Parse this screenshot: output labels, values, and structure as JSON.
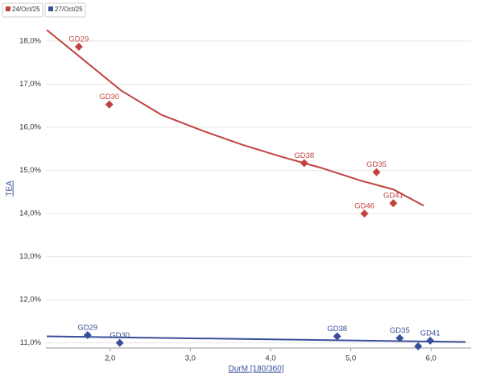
{
  "chart_data": {
    "type": "scatter",
    "xlabel": "DurM [180/360]",
    "ylabel": "TEA",
    "xlim": [
      1.2,
      6.5
    ],
    "ylim": [
      10.88,
      18.3
    ],
    "xticks": [
      {
        "value": 2,
        "label": "2,0"
      },
      {
        "value": 3,
        "label": "3,0"
      },
      {
        "value": 4,
        "label": "4,0"
      },
      {
        "value": 5,
        "label": "5,0"
      },
      {
        "value": 6,
        "label": "6,0"
      }
    ],
    "yticks": [
      {
        "value": 11,
        "label": "11,0%"
      },
      {
        "value": 12,
        "label": "12,0%"
      },
      {
        "value": 13,
        "label": "13,0%"
      },
      {
        "value": 14,
        "label": "14,0%"
      },
      {
        "value": 15,
        "label": "15,0%"
      },
      {
        "value": 16,
        "label": "16,0%"
      },
      {
        "value": 17,
        "label": "17,0%"
      },
      {
        "value": 18,
        "label": "18,0%"
      }
    ],
    "grid": true,
    "series": [
      {
        "name": "24/Oct/25",
        "color": "#c0433f",
        "x": [
          1.61,
          1.99,
          4.42,
          5.32,
          5.53,
          5.17
        ],
        "values": [
          17.87,
          16.53,
          15.17,
          14.96,
          14.24,
          14.0
        ],
        "labels": [
          "GD29",
          "GD30",
          "GD38",
          "GD35",
          "GD41",
          "GD46"
        ],
        "trend": {
          "x": [
            1.21,
            1.64,
            2.14,
            2.64,
            3.14,
            3.64,
            4.13,
            4.63,
            5.13,
            5.53,
            5.91
          ],
          "values": [
            18.26,
            17.61,
            16.85,
            16.29,
            15.93,
            15.6,
            15.32,
            15.06,
            14.76,
            14.56,
            14.18
          ]
        }
      },
      {
        "name": "27/Oct/25",
        "color": "#3a4f9a",
        "x": [
          1.72,
          2.12,
          4.83,
          5.61,
          5.84,
          5.99
        ],
        "values": [
          11.18,
          11.0,
          11.15,
          11.11,
          10.92,
          11.05
        ],
        "labels": [
          "GD29",
          "GD30",
          "GD38",
          "GD35",
          null,
          "GD41"
        ],
        "trend": {
          "x": [
            1.21,
            6.43
          ],
          "values": [
            11.15,
            11.02
          ]
        }
      }
    ]
  }
}
